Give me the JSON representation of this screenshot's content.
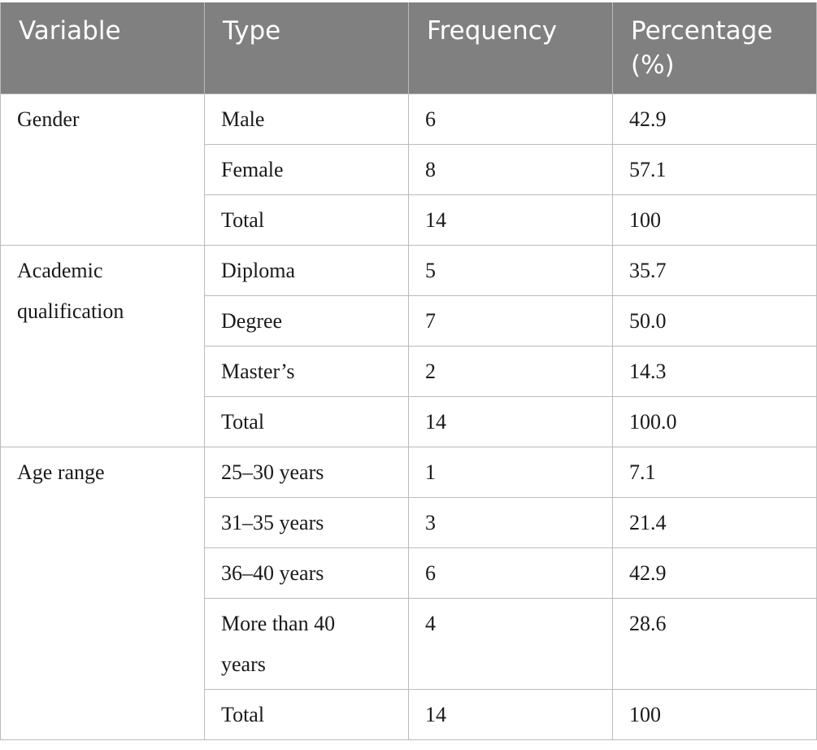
{
  "table": {
    "header": [
      "Variable",
      "Type",
      "Frequency",
      "Percentage (%)"
    ],
    "groups": [
      {
        "variable": "Gender",
        "rows": [
          [
            "Male",
            "6",
            "42.9"
          ],
          [
            "Female",
            "8",
            "57.1"
          ],
          [
            "Total",
            "14",
            "100"
          ]
        ]
      },
      {
        "variable": "Academic qualification",
        "rows": [
          [
            "Diploma",
            "5",
            "35.7"
          ],
          [
            "Degree",
            "7",
            "50.0"
          ],
          [
            "Master’s",
            "2",
            "14.3"
          ],
          [
            "Total",
            "14",
            "100.0"
          ]
        ]
      },
      {
        "variable": "Age range",
        "rows": [
          [
            "25–30 years",
            "1",
            "7.1"
          ],
          [
            "31–35 years",
            "3",
            "21.4"
          ],
          [
            "36–40 years",
            "6",
            "42.9"
          ],
          [
            "More than 40 years",
            "4",
            "28.6"
          ],
          [
            "Total",
            "14",
            "100"
          ]
        ]
      }
    ]
  }
}
